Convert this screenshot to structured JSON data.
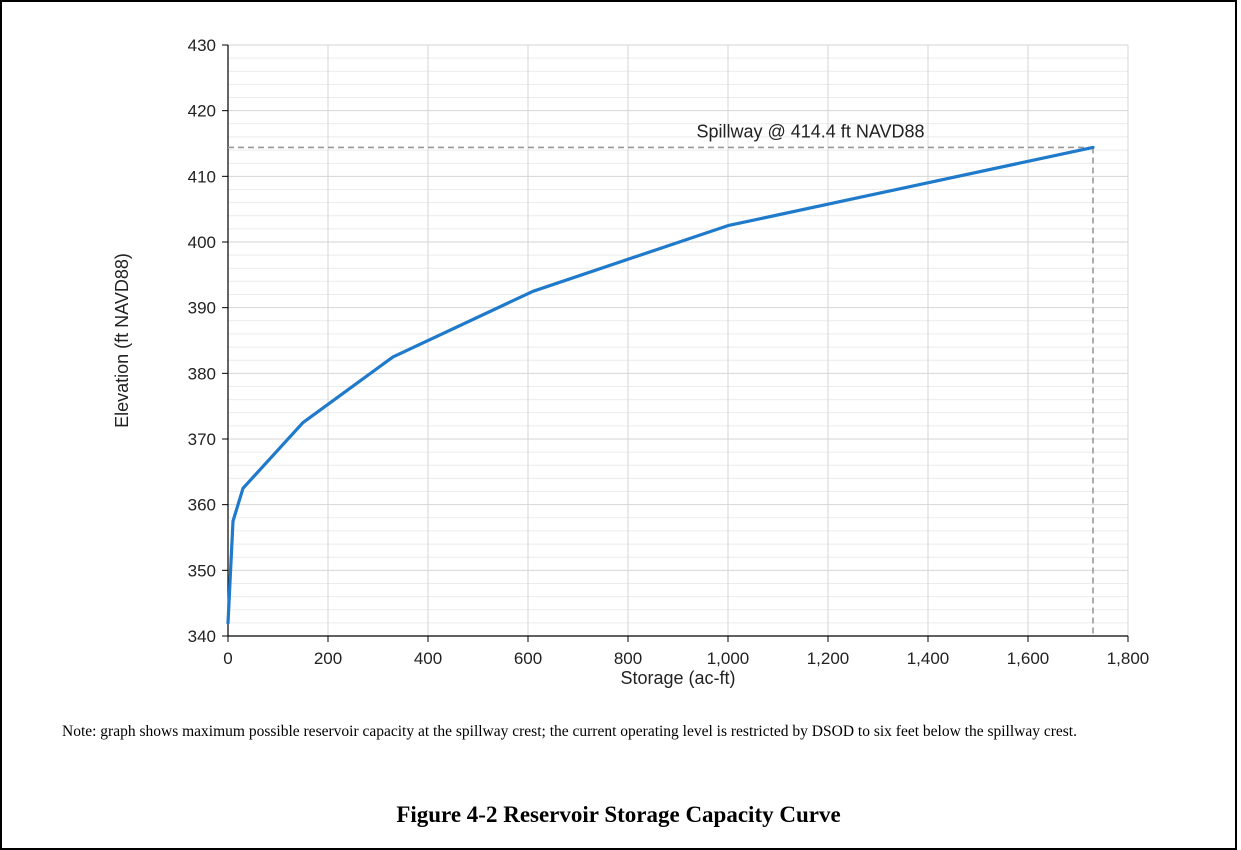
{
  "chart_data": {
    "type": "line",
    "xlabel": "Storage (ac-ft)",
    "ylabel": "Elevation (ft NAVD88)",
    "xlim": [
      0,
      1800
    ],
    "ylim": [
      340,
      430
    ],
    "x_ticks": [
      0,
      200,
      400,
      600,
      800,
      1000,
      1200,
      1400,
      1600,
      1800
    ],
    "x_tick_labels": [
      "0",
      "200",
      "400",
      "600",
      "800",
      "1,000",
      "1,200",
      "1,400",
      "1,600",
      "1,800"
    ],
    "y_ticks": [
      340,
      350,
      360,
      370,
      380,
      390,
      400,
      410,
      420,
      430
    ],
    "y_tick_labels": [
      "340",
      "350",
      "360",
      "370",
      "380",
      "390",
      "400",
      "410",
      "420",
      "430"
    ],
    "grid": true,
    "series": [
      {
        "color": "#1f7acb",
        "x": [
          0,
          10,
          30,
          150,
          330,
          610,
          1000,
          1730
        ],
        "y": [
          342,
          357.5,
          362.5,
          372.5,
          382.5,
          392.5,
          402.5,
          414.4
        ]
      }
    ],
    "annotations": [
      {
        "text": "Spillway @ 414.4 ft NAVD88",
        "x": 1730,
        "y": 414.4,
        "style": "dashed reference lines",
        "color": "#999999"
      }
    ]
  },
  "note": "Note: graph shows maximum possible reservoir capacity at the spillway crest; the current operating level is restricted by DSOD to six feet below the spillway crest.",
  "caption": "Figure 4-2 Reservoir Storage Capacity Curve"
}
